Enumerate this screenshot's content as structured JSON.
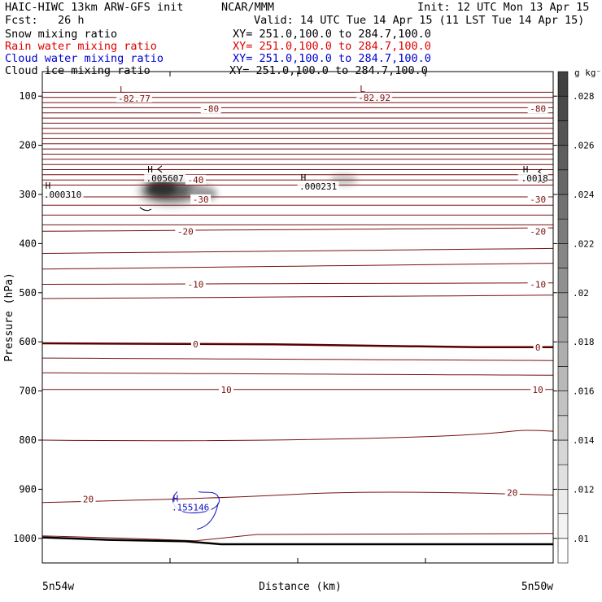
{
  "header": {
    "model_title": "HAIC-HIWC 13km ARW-GFS init",
    "institution": "NCAR/MMM",
    "init_time": "Init: 12 UTC Mon 13 Apr 15",
    "forecast": "Fcst:   26 h",
    "valid_time": "Valid: 14 UTC Tue 14 Apr 15 (11 LST Tue 14 Apr 15)"
  },
  "fields": [
    {
      "name": "Snow mixing ratio",
      "xy": "XY= 251.0,100.0 to 284.7,100.0",
      "color": "#000000"
    },
    {
      "name": "Rain water mixing ratio",
      "xy": "XY= 251.0,100.0 to 284.7,100.0",
      "color": "#e00000"
    },
    {
      "name": "Cloud water mixing ratio",
      "xy": "XY= 251.0,100.0 to 284.7,100.0",
      "color": "#0000d0"
    },
    {
      "name": "Cloud ice mixing ratio",
      "xy": "XY= 251.0,100.0 to 284.7,100.0",
      "color": "#000000"
    }
  ],
  "colors": {
    "isotherm": "#7a1010",
    "zero_isotherm": "#5a0000",
    "cloud_water": "#1010c0",
    "terrain": "#000000",
    "frame": "#000000"
  },
  "chart_data": {
    "type": "heatmap",
    "title": "HAIC-HIWC 13km ARW-GFS init",
    "xlabel": "Distance (km)",
    "ylabel": "Pressure (hPa)",
    "x_tick_labels": [
      "5n54w",
      "5n50w"
    ],
    "y_axis": {
      "min": 100,
      "max": 1000,
      "ticks": [
        100,
        200,
        300,
        400,
        500,
        600,
        700,
        800,
        900,
        1000
      ],
      "range": [
        50,
        1050
      ]
    },
    "colorbar": {
      "unit": "g kg⁻¹",
      "ticks": [
        ".01",
        ".012",
        ".014",
        ".016",
        ".018",
        ".02",
        ".022",
        ".024",
        ".026",
        ".028"
      ],
      "levels": [
        0.01,
        0.011,
        0.012,
        0.013,
        0.014,
        0.015,
        0.016,
        0.017,
        0.018,
        0.019,
        0.02,
        0.021,
        0.022,
        0.023,
        0.024,
        0.025,
        0.026,
        0.027,
        0.028,
        0.029
      ],
      "shades": [
        "#ffffff",
        "#f4f4f4",
        "#ebebeb",
        "#e0e0e0",
        "#d6d6d6",
        "#cccccc",
        "#c2c2c2",
        "#b8b8b8",
        "#aeaeae",
        "#a4a4a4",
        "#9a9a9a",
        "#909090",
        "#868686",
        "#7c7c7c",
        "#727272",
        "#686868",
        "#5e5e5e",
        "#545454",
        "#4a4a4a",
        "#404040"
      ]
    },
    "temperature_labels": [
      {
        "text": "-80",
        "x": 0.33,
        "p": 125
      },
      {
        "text": "-80",
        "x": 0.97,
        "p": 125
      },
      {
        "text": "-40",
        "x": 0.3,
        "p": 270
      },
      {
        "text": "-40",
        "x": 0.97,
        "p": 270
      },
      {
        "text": "-30",
        "x": 0.31,
        "p": 310
      },
      {
        "text": "-30",
        "x": 0.97,
        "p": 310
      },
      {
        "text": "-20",
        "x": 0.28,
        "p": 375
      },
      {
        "text": "-20",
        "x": 0.97,
        "p": 375
      },
      {
        "text": "-10",
        "x": 0.3,
        "p": 483
      },
      {
        "text": "-10",
        "x": 0.97,
        "p": 483
      },
      {
        "text": "0",
        "x": 0.3,
        "p": 605
      },
      {
        "text": "0",
        "x": 0.97,
        "p": 611
      },
      {
        "text": "10",
        "x": 0.36,
        "p": 697
      },
      {
        "text": "10",
        "x": 0.97,
        "p": 697
      },
      {
        "text": "20",
        "x": 0.09,
        "p": 920
      },
      {
        "text": "20",
        "x": 0.92,
        "p": 907
      }
    ],
    "extrema": [
      {
        "type": "L",
        "value": "-82.77",
        "x": 0.18,
        "p": 93,
        "color": "#7a1010"
      },
      {
        "type": "L",
        "value": "-82.92",
        "x": 0.65,
        "p": 91,
        "color": "#7a1010"
      },
      {
        "type": "H",
        "value": ".005607",
        "x": 0.24,
        "p": 255,
        "color": "#000000"
      },
      {
        "type": "H",
        "value": ".000310",
        "x": 0.04,
        "p": 288,
        "color": "#000000"
      },
      {
        "type": "H",
        "value": ".000231",
        "x": 0.54,
        "p": 272,
        "color": "#000000"
      },
      {
        "type": "H",
        "value": ".0018",
        "x": 0.99,
        "p": 255,
        "color": "#000000"
      },
      {
        "type": "H",
        "value": ".155146",
        "x": 0.29,
        "p": 925,
        "color": "#1010c0"
      }
    ],
    "shaded_regions": [
      {
        "field": "snow mixing ratio",
        "x": 0.25,
        "p": 293,
        "max_g_per_kg": 0.028
      },
      {
        "field": "snow mixing ratio",
        "x": 0.59,
        "p": 270,
        "max_g_per_kg": 0.012
      }
    ]
  }
}
